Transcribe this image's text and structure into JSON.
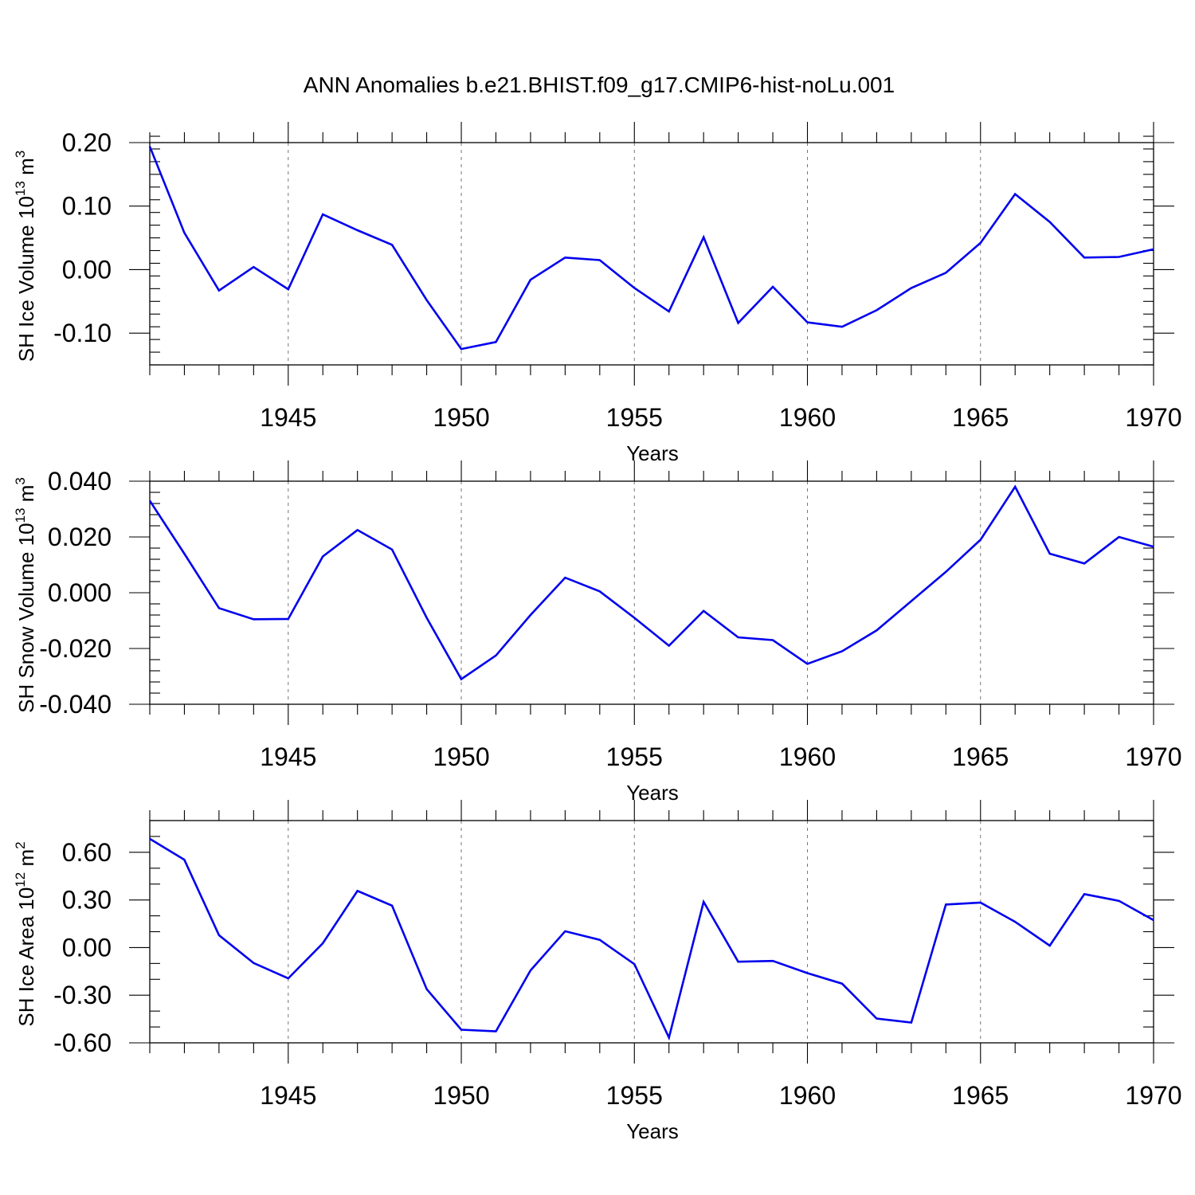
{
  "title": "ANN Anomalies b.e21.BHIST.f09_g17.CMIP6-hist-noLu.001",
  "colors": {
    "series": "#0000ee",
    "grid": "#777777",
    "axis": "#000000"
  },
  "chart_data": [
    {
      "type": "line",
      "ylabel_text": "SH Ice Volume 10",
      "ylabel_exp": "13",
      "ylabel_unit": " m",
      "ylabel_unit_exp": "3",
      "xlabel": "Years",
      "xlim": [
        1941,
        1970
      ],
      "ylim": [
        -0.15,
        0.2
      ],
      "yticks": [
        -0.1,
        0.0,
        0.1,
        0.2
      ],
      "ytick_labels": [
        "-0.10",
        "0.00",
        "0.10",
        "0.20"
      ],
      "yminor_step": 0.02,
      "xticks": [
        1945,
        1950,
        1955,
        1960,
        1965,
        1970
      ],
      "xtick_labels": [
        "1945",
        "1950",
        "1955",
        "1960",
        "1965",
        "1970"
      ],
      "grid_x": [
        1945,
        1950,
        1955,
        1960,
        1965
      ],
      "x": [
        1941,
        1942,
        1943,
        1944,
        1945,
        1946,
        1947,
        1948,
        1949,
        1950,
        1951,
        1952,
        1953,
        1954,
        1955,
        1956,
        1957,
        1958,
        1959,
        1960,
        1961,
        1962,
        1963,
        1964,
        1965,
        1966,
        1967,
        1968,
        1969,
        1970
      ],
      "series": [
        {
          "values": [
            0.194,
            0.058,
            -0.033,
            0.004,
            -0.031,
            0.087,
            0.062,
            0.039,
            -0.048,
            -0.125,
            -0.114,
            -0.016,
            0.019,
            0.015,
            -0.029,
            -0.066,
            0.051,
            -0.084,
            -0.027,
            -0.083,
            -0.09,
            -0.064,
            -0.029,
            -0.005,
            0.042,
            0.119,
            0.075,
            0.019,
            0.02,
            0.032
          ]
        }
      ]
    },
    {
      "type": "line",
      "ylabel_text": "SH Snow Volume 10",
      "ylabel_exp": "13",
      "ylabel_unit": " m",
      "ylabel_unit_exp": "3",
      "xlabel": "Years",
      "xlim": [
        1941,
        1970
      ],
      "ylim": [
        -0.04,
        0.04
      ],
      "yticks": [
        -0.04,
        -0.02,
        0.0,
        0.02,
        0.04
      ],
      "ytick_labels": [
        "-0.040",
        "-0.020",
        "0.000",
        "0.020",
        "0.040"
      ],
      "yminor_step": 0.004,
      "xticks": [
        1945,
        1950,
        1955,
        1960,
        1965,
        1970
      ],
      "xtick_labels": [
        "1945",
        "1950",
        "1955",
        "1960",
        "1965",
        "1970"
      ],
      "grid_x": [
        1945,
        1950,
        1955,
        1960,
        1965
      ],
      "x": [
        1941,
        1942,
        1943,
        1944,
        1945,
        1946,
        1947,
        1948,
        1949,
        1950,
        1951,
        1952,
        1953,
        1954,
        1955,
        1956,
        1957,
        1958,
        1959,
        1960,
        1961,
        1962,
        1963,
        1964,
        1965,
        1966,
        1967,
        1968,
        1969,
        1970
      ],
      "series": [
        {
          "values": [
            0.033,
            0.014,
            -0.0055,
            -0.0095,
            -0.0094,
            0.013,
            0.0225,
            0.0155,
            -0.009,
            -0.031,
            -0.0225,
            -0.008,
            0.0054,
            0.0005,
            -0.009,
            -0.019,
            -0.0065,
            -0.016,
            -0.017,
            -0.0255,
            -0.021,
            -0.0135,
            -0.003,
            0.0075,
            0.019,
            0.038,
            0.014,
            0.0105,
            0.02,
            0.0165
          ]
        }
      ]
    },
    {
      "type": "line",
      "ylabel_text": "SH Ice Area 10",
      "ylabel_exp": "12",
      "ylabel_unit": " m",
      "ylabel_unit_exp": "2",
      "xlabel": "Years",
      "xlim": [
        1941,
        1970
      ],
      "ylim": [
        -0.6,
        0.8
      ],
      "yticks": [
        -0.6,
        -0.3,
        0.0,
        0.3,
        0.6
      ],
      "ytick_labels": [
        "-0.60",
        "-0.30",
        "0.00",
        "0.30",
        "0.60"
      ],
      "yminor_step": 0.1,
      "xticks": [
        1945,
        1950,
        1955,
        1960,
        1965,
        1970
      ],
      "xtick_labels": [
        "1945",
        "1950",
        "1955",
        "1960",
        "1965",
        "1970"
      ],
      "grid_x": [
        1945,
        1950,
        1955,
        1960,
        1965
      ],
      "x": [
        1941,
        1942,
        1943,
        1944,
        1945,
        1946,
        1947,
        1948,
        1949,
        1950,
        1951,
        1952,
        1953,
        1954,
        1955,
        1956,
        1957,
        1958,
        1959,
        1960,
        1961,
        1962,
        1963,
        1964,
        1965,
        1966,
        1967,
        1968,
        1969,
        1970
      ],
      "series": [
        {
          "values": [
            0.685,
            0.553,
            0.078,
            -0.097,
            -0.194,
            0.027,
            0.357,
            0.264,
            -0.262,
            -0.517,
            -0.527,
            -0.144,
            0.103,
            0.049,
            -0.104,
            -0.567,
            0.288,
            -0.089,
            -0.084,
            -0.161,
            -0.227,
            -0.447,
            -0.472,
            0.271,
            0.283,
            0.162,
            0.012,
            0.337,
            0.294,
            0.173
          ]
        }
      ]
    }
  ]
}
